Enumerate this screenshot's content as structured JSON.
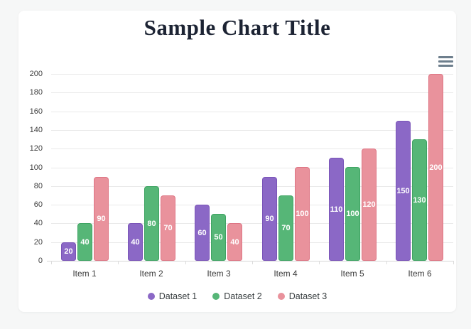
{
  "page": {
    "background_color": "#f6f7f7",
    "card_background_color": "#ffffff"
  },
  "toolbar": {
    "menu_icon": "hamburger-menu-icon",
    "menu_icon_color": "#6e7f8d"
  },
  "chart_data": {
    "type": "bar",
    "title": "Sample Chart Title",
    "title_color": "#1c2333",
    "categories": [
      "Item 1",
      "Item 2",
      "Item 3",
      "Item 4",
      "Item 5",
      "Item 6"
    ],
    "series": [
      {
        "name": "Dataset 1",
        "color": "#8b68c6",
        "border_color": "#7a54b8",
        "values": [
          20,
          40,
          60,
          90,
          110,
          150
        ]
      },
      {
        "name": "Dataset 2",
        "color": "#56b677",
        "border_color": "#3fa463",
        "values": [
          40,
          80,
          50,
          70,
          100,
          130
        ]
      },
      {
        "name": "Dataset 3",
        "color": "#e9929c",
        "border_color": "#de7584",
        "values": [
          90,
          70,
          40,
          100,
          120,
          200
        ]
      }
    ],
    "xlabel": "",
    "ylabel": "",
    "ylim": [
      0,
      200
    ],
    "ytick_step": 20,
    "yticks": [
      0,
      20,
      40,
      60,
      80,
      100,
      120,
      140,
      160,
      180,
      200
    ],
    "grid": "horizontal",
    "legend_position": "bottom",
    "value_labels": "inside-center",
    "value_label_color": "#ffffff",
    "axis_label_color": "#3f3f3f",
    "gridline_color": "#e9e9e9"
  }
}
